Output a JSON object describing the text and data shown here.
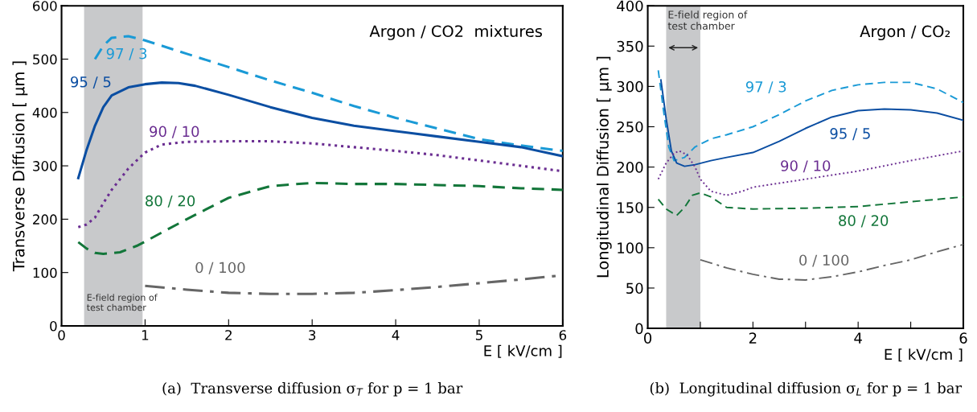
{
  "chart_data": [
    {
      "type": "line",
      "xlabel": "E [ kV/cm ]",
      "ylabel": "Transverse Diffusion [ μm ]",
      "xlim": [
        0,
        6
      ],
      "ylim": [
        0,
        600
      ],
      "xticks": [
        0,
        1,
        2,
        3,
        4,
        5,
        6
      ],
      "yticks": [
        0,
        100,
        200,
        300,
        400,
        500,
        600
      ],
      "grid": false,
      "legend": false,
      "bands": [
        {
          "axis": "x",
          "from": 0.27,
          "to": 0.97,
          "label": "E-field region of\ntest chamber",
          "color": "#c8c9cb"
        }
      ],
      "annotations": [
        "Argon / CO2  mixtures",
        "(a)  Transverse diffusion σ$_{T}$ for p = 1 bar"
      ],
      "series": [
        {
          "name": "97 / 3",
          "color": "#1a9ad6",
          "line_style": "dashed",
          "x": [
            0.4,
            0.5,
            0.6,
            0.8,
            1.0,
            1.5,
            2,
            2.5,
            3,
            3.5,
            4,
            4.5,
            5,
            5.5,
            6
          ],
          "values": [
            500,
            525,
            540,
            543,
            535,
            510,
            485,
            460,
            437,
            412,
            390,
            370,
            350,
            338,
            328
          ]
        },
        {
          "name": "95 / 5",
          "color": "#0b4ea2",
          "line_style": "solid",
          "x": [
            0.2,
            0.3,
            0.4,
            0.5,
            0.6,
            0.8,
            1.0,
            1.2,
            1.4,
            1.6,
            2,
            2.5,
            3,
            3.5,
            4,
            4.5,
            5,
            5.5,
            6
          ],
          "values": [
            277,
            330,
            375,
            410,
            432,
            447,
            453,
            456,
            455,
            450,
            433,
            410,
            390,
            375,
            365,
            355,
            345,
            335,
            318
          ]
        },
        {
          "name": "90 / 10",
          "color": "#6a2d91",
          "line_style": "dotted",
          "x": [
            0.2,
            0.3,
            0.4,
            0.5,
            0.6,
            0.8,
            1.0,
            1.2,
            1.5,
            2,
            2.5,
            3,
            3.5,
            4,
            4.5,
            5,
            5.5,
            6
          ],
          "values": [
            185,
            190,
            203,
            230,
            255,
            295,
            325,
            340,
            345,
            346,
            346,
            342,
            335,
            328,
            320,
            310,
            300,
            290
          ]
        },
        {
          "name": "80 / 20",
          "color": "#13763a",
          "line_style": "dashed",
          "x": [
            0.2,
            0.3,
            0.4,
            0.5,
            0.7,
            0.9,
            1.0,
            1.2,
            1.5,
            2,
            2.5,
            3,
            3.5,
            4,
            4.5,
            5,
            5.5,
            6
          ],
          "values": [
            157,
            145,
            137,
            135,
            138,
            150,
            158,
            175,
            200,
            240,
            262,
            268,
            266,
            266,
            264,
            262,
            258,
            255
          ]
        },
        {
          "name": "0 / 100",
          "color": "#666666",
          "line_style": "dashdot",
          "x": [
            1.0,
            1.5,
            2,
            2.5,
            3,
            3.5,
            4,
            4.5,
            5,
            5.5,
            6
          ],
          "values": [
            75,
            68,
            62,
            60,
            60,
            62,
            67,
            73,
            80,
            87,
            95
          ]
        }
      ]
    },
    {
      "type": "line",
      "xlabel": "E [ kV/cm ]",
      "ylabel": "Longitudinal Diffusion [ μm ]",
      "xlim": [
        0,
        6
      ],
      "ylim": [
        0,
        400
      ],
      "xticks": [
        0,
        {
          "value": 1,
          "label": null
        },
        2,
        {
          "value": 3,
          "label": null
        },
        4,
        {
          "value": 5,
          "label": null
        },
        6
      ],
      "yticks": [
        0,
        50,
        100,
        150,
        200,
        250,
        300,
        350,
        400
      ],
      "grid": false,
      "legend": false,
      "bands": [
        {
          "axis": "x",
          "from": 0.35,
          "to": 1.0,
          "label": "E-field region of\ntest chamber",
          "color": "#c8c9cb"
        }
      ],
      "annotations": [
        "Argon / CO₂",
        "(b)  Longitudinal diffusion σ$_{L}$ for p = 1 bar"
      ],
      "series": [
        {
          "name": "97 / 3",
          "color": "#1a9ad6",
          "line_style": "dashed",
          "x": [
            0.2,
            0.3,
            0.4,
            0.5,
            0.7,
            0.9,
            1.2,
            1.5,
            2,
            2.5,
            3,
            3.5,
            4,
            4.5,
            5,
            5.5,
            6
          ],
          "values": [
            320,
            270,
            225,
            208,
            212,
            225,
            235,
            240,
            250,
            265,
            282,
            295,
            302,
            305,
            305,
            297,
            280
          ]
        },
        {
          "name": "95 / 5",
          "color": "#0b4ea2",
          "line_style": "solid",
          "x": [
            0.25,
            0.35,
            0.45,
            0.55,
            0.7,
            0.9,
            1.2,
            1.5,
            2,
            2.5,
            3,
            3.5,
            4,
            4.5,
            5,
            5.5,
            6
          ],
          "values": [
            308,
            260,
            220,
            205,
            201,
            203,
            208,
            212,
            218,
            232,
            248,
            262,
            270,
            272,
            271,
            267,
            258
          ]
        },
        {
          "name": "90 / 10",
          "color": "#6a2d91",
          "line_style": "dotted",
          "x": [
            0.2,
            0.35,
            0.5,
            0.6,
            0.75,
            0.9,
            1.0,
            1.2,
            1.5,
            1.8,
            2,
            3,
            4,
            5,
            6
          ],
          "values": [
            185,
            205,
            217,
            220,
            215,
            200,
            185,
            170,
            165,
            170,
            175,
            185,
            195,
            208,
            220
          ]
        },
        {
          "name": "80 / 20",
          "color": "#13763a",
          "line_style": "dashed",
          "x": [
            0.2,
            0.35,
            0.55,
            0.7,
            0.85,
            1.0,
            1.2,
            1.5,
            2,
            3,
            4,
            5,
            6
          ],
          "values": [
            160,
            148,
            140,
            150,
            165,
            168,
            163,
            150,
            148,
            149,
            151,
            157,
            163
          ]
        },
        {
          "name": "0 / 100",
          "color": "#666666",
          "line_style": "dashdot",
          "x": [
            1.0,
            1.5,
            2,
            2.5,
            3,
            3.5,
            4,
            4.5,
            5,
            5.5,
            6
          ],
          "values": [
            85,
            75,
            67,
            61,
            60,
            64,
            70,
            78,
            85,
            95,
            104
          ]
        }
      ]
    }
  ]
}
